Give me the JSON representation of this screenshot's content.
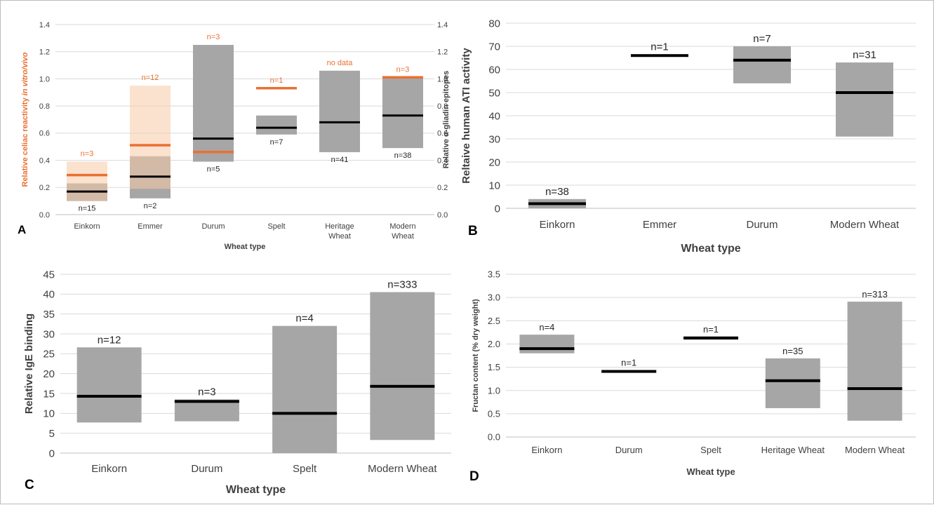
{
  "colors": {
    "bar": "#a6a6a6",
    "median": "#000000",
    "celiac_range": "#f8cba8",
    "celiac_median": "#ea7030",
    "celiac_label": "#ea7030",
    "grid": "#d9d9d9",
    "axis": "#bfbfbf",
    "text": "#404040"
  },
  "chart_data": [
    {
      "panel": "A",
      "type": "bar",
      "categories": [
        "Einkorn",
        "Emmer",
        "Durum",
        "Spelt",
        "Heritage\nWheat",
        "Modern\nWheat"
      ],
      "xlabel": "Wheat type",
      "ylabel_left": "Relative celiac reactivity in vitro/vivo",
      "ylabel_right": "Relative α-gliadin epitopes",
      "ylim": [
        0,
        1.4
      ],
      "yticks": [
        "0.0",
        "0.2",
        "0.4",
        "0.6",
        "0.8",
        "1.0",
        "1.2",
        "1.4"
      ],
      "grid": true,
      "series": [
        {
          "name": "Relative α-gliadin epitopes",
          "axis": "right",
          "low": [
            0.1,
            0.12,
            0.39,
            0.59,
            0.46,
            0.49
          ],
          "high": [
            0.23,
            0.43,
            1.25,
            0.73,
            1.06,
            1.01
          ],
          "median": [
            0.17,
            0.28,
            0.56,
            0.64,
            0.68,
            0.73
          ],
          "n_labels": [
            "n=15",
            "n=2",
            "n=5",
            "n=7",
            "n=41",
            "n=38"
          ]
        },
        {
          "name": "Relative celiac reactivity in vitro/vivo",
          "axis": "left",
          "low": [
            0.1,
            0.19,
            null,
            null,
            null,
            null
          ],
          "high": [
            0.39,
            0.95,
            null,
            null,
            null,
            null
          ],
          "median": [
            0.29,
            0.51,
            0.46,
            0.93,
            null,
            1.01
          ],
          "n_labels": [
            "n=3",
            "n=12",
            "n=3",
            "n=1",
            "no data",
            "n=3"
          ]
        }
      ]
    },
    {
      "panel": "B",
      "type": "bar",
      "categories": [
        "Einkorn",
        "Emmer",
        "Durum",
        "Modern Wheat"
      ],
      "xlabel": "Wheat type",
      "ylabel": "Reltaive human ATI activity",
      "ylim": [
        0,
        80
      ],
      "yticks": [
        "0",
        "10",
        "20",
        "30",
        "40",
        "50",
        "60",
        "70",
        "80"
      ],
      "grid": true,
      "series": [
        {
          "low": [
            0,
            65.5,
            54,
            31
          ],
          "high": [
            4,
            66.5,
            70,
            63
          ],
          "median": [
            2,
            66,
            64,
            50
          ],
          "n_labels": [
            "n=38",
            "n=1",
            "n=7",
            "n=31"
          ]
        }
      ]
    },
    {
      "panel": "C",
      "type": "bar",
      "categories": [
        "Einkorn",
        "Durum",
        "Spelt",
        "Modern Wheat"
      ],
      "xlabel": "Wheat type",
      "ylabel": "Relative IgE binding",
      "ylim": [
        0,
        45
      ],
      "yticks": [
        "0",
        "5",
        "10",
        "15",
        "20",
        "25",
        "30",
        "35",
        "40",
        "45"
      ],
      "grid": true,
      "series": [
        {
          "low": [
            7.7,
            8.0,
            0,
            3.3
          ],
          "high": [
            26.6,
            13.5,
            32,
            40.5
          ],
          "median": [
            14.3,
            13.0,
            10.0,
            16.8
          ],
          "n_labels": [
            "n=12",
            "n=3",
            "n=4",
            "n=333"
          ]
        }
      ]
    },
    {
      "panel": "D",
      "type": "bar",
      "categories": [
        "Einkorn",
        "Durum",
        "Spelt",
        "Heritage Wheat",
        "Modern Wheat"
      ],
      "xlabel": "Wheat type",
      "ylabel": "Fructan content (% dry weight)",
      "ylim": [
        0,
        3.5
      ],
      "yticks": [
        "0.0",
        "0.5",
        "1.0",
        "1.5",
        "2.0",
        "2.5",
        "3.0",
        "3.5"
      ],
      "grid": true,
      "series": [
        {
          "low": [
            1.8,
            1.38,
            2.09,
            0.62,
            0.35
          ],
          "high": [
            2.2,
            1.44,
            2.16,
            1.69,
            2.91
          ],
          "median": [
            1.9,
            1.41,
            2.13,
            1.21,
            1.04
          ],
          "n_labels": [
            "n=4",
            "n=1",
            "n=1",
            "n=35",
            "n=313"
          ]
        }
      ]
    }
  ]
}
